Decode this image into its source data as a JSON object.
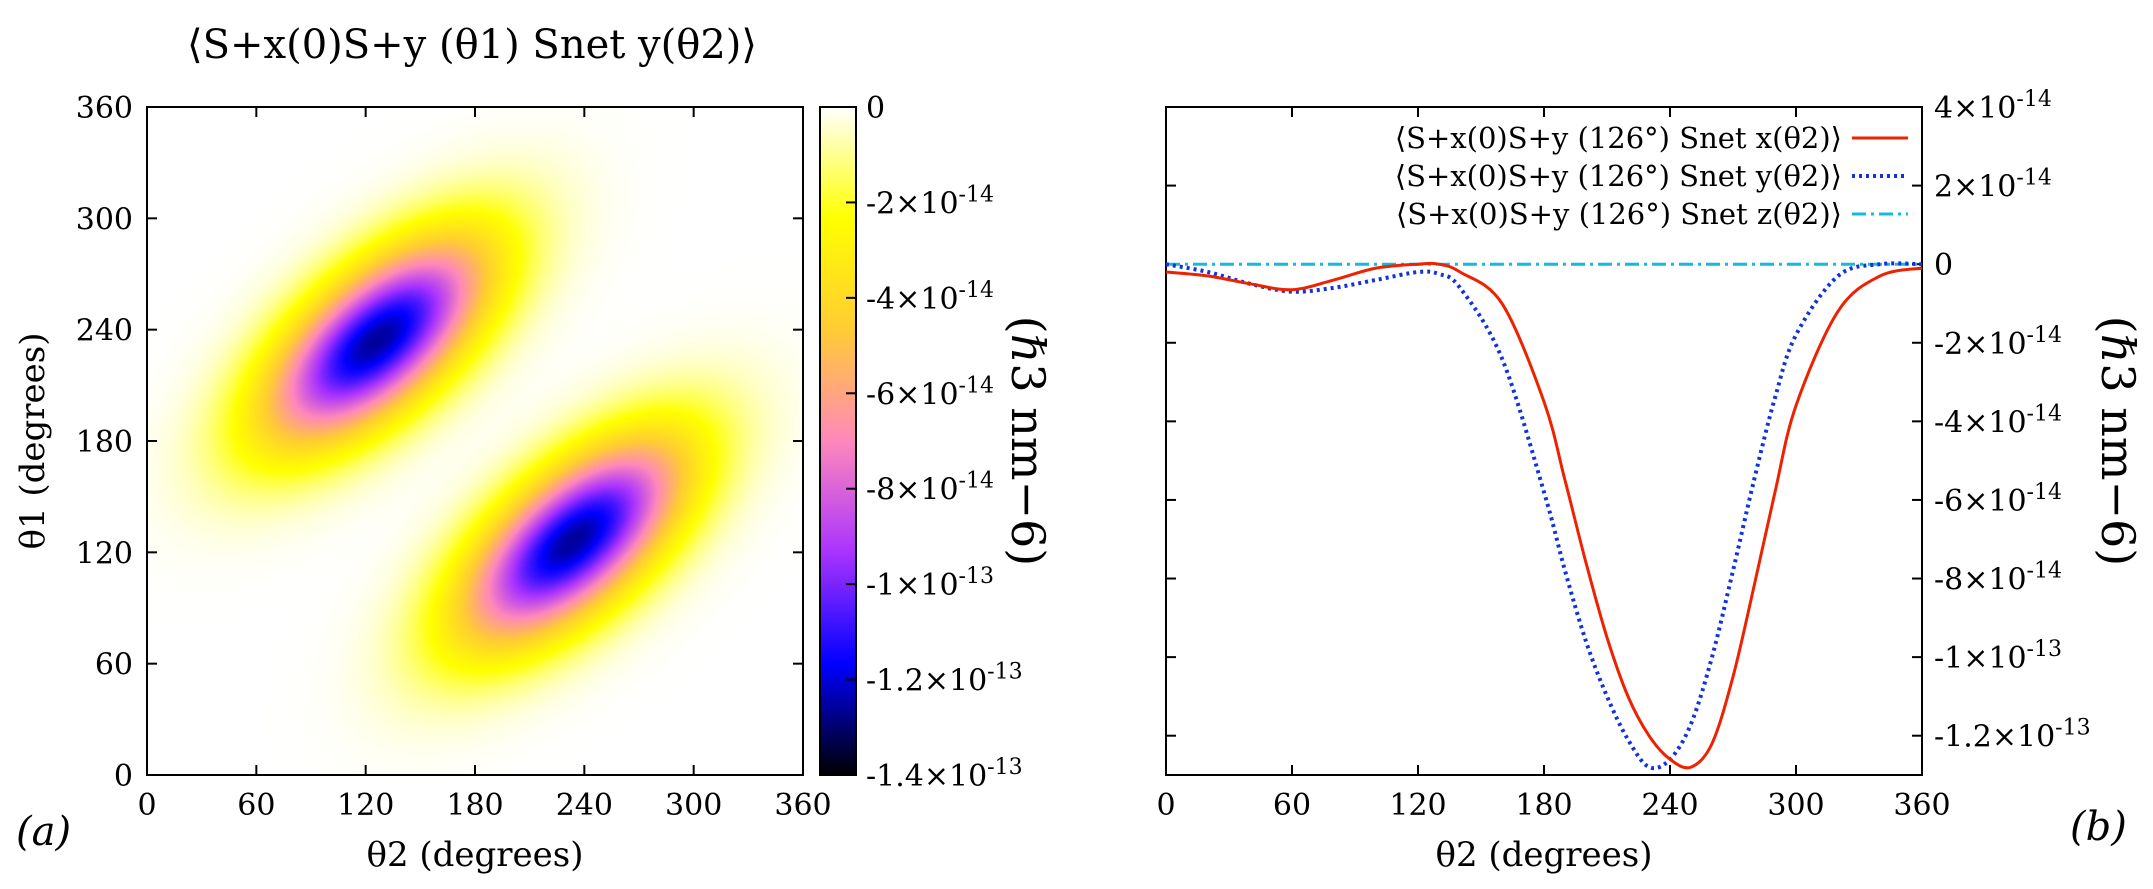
{
  "chart_data": [
    {
      "type": "heatmap",
      "panel_label": "(a)",
      "title": "⟨S+x(0)S+y (θ1) Snet y(θ2)⟩",
      "xlabel": "θ2 (degrees)",
      "ylabel": "θ1 (degrees)",
      "xlim": [
        0,
        360
      ],
      "ylim": [
        0,
        360
      ],
      "xticks": [
        "0",
        "60",
        "120",
        "180",
        "240",
        "300",
        "360"
      ],
      "yticks": [
        "0",
        "60",
        "120",
        "180",
        "240",
        "300",
        "360"
      ],
      "colorbar": {
        "range": [
          -1.4e-13,
          0
        ],
        "ticks": [
          "0",
          "-2×10-14",
          "-4×10-14",
          "-6×10-14",
          "-8×10-14",
          "-1×10-13",
          "-1.2×10-13",
          "-1.4×10-13"
        ],
        "label": "(ℏ3 nm−6)",
        "colors": [
          "#000000",
          "#0000ff",
          "#aa33ff",
          "#ff88bb",
          "#ffcc33",
          "#ffff00",
          "#ffffff"
        ]
      },
      "features": [
        {
          "name": "lobe-1",
          "theta2_center": 126,
          "theta1_center": 234,
          "min_value": -1.26e-13
        },
        {
          "name": "lobe-2",
          "theta2_center": 234,
          "theta1_center": 126,
          "min_value": -1.26e-13
        }
      ]
    },
    {
      "type": "line",
      "panel_label": "(b)",
      "xlabel": "θ2 (degrees)",
      "ylabel": "(ℏ3 nm−6)",
      "xlim": [
        0,
        360
      ],
      "ylim": [
        -1.3e-13,
        4e-14
      ],
      "xticks": [
        "0",
        "60",
        "120",
        "180",
        "240",
        "300",
        "360"
      ],
      "yticks": [
        "4×10-14",
        "2×10-14",
        "0",
        "-2×10-14",
        "-4×10-14",
        "-6×10-14",
        "-8×10-14",
        "-1×10-13",
        "-1.2×10-13"
      ],
      "x": [
        0,
        20,
        40,
        60,
        80,
        100,
        120,
        130,
        140,
        160,
        180,
        190,
        200,
        210,
        220,
        230,
        240,
        250,
        260,
        270,
        280,
        290,
        300,
        320,
        340,
        360
      ],
      "series": [
        {
          "name": "⟨S+x(0)S+y (126°) Snet x(θ2)⟩",
          "color": "#ee2200",
          "style": "solid",
          "values": [
            -2e-15,
            -3e-15,
            -5e-15,
            -6.5e-15,
            -4e-15,
            -1e-15,
            0,
            0,
            -2e-15,
            -1e-14,
            -3.5e-14,
            -5.5e-14,
            -7.6e-14,
            -9.5e-14,
            -1.1e-13,
            -1.2e-13,
            -1.26e-13,
            -1.28e-13,
            -1.22e-13,
            -1.05e-13,
            -8.2e-14,
            -5.8e-14,
            -3.6e-14,
            -1.2e-14,
            -3e-15,
            -1e-15
          ]
        },
        {
          "name": "⟨S+x(0)S+y (126°) Snet y(θ2)⟩",
          "color": "#1133dd",
          "style": "dotted",
          "values": [
            0,
            -2e-15,
            -5e-15,
            -7e-15,
            -6e-15,
            -4e-15,
            -2e-15,
            -2.5e-15,
            -6e-15,
            -2.4e-14,
            -5.8e-14,
            -7.8e-14,
            -9.6e-14,
            -1.1e-13,
            -1.21e-13,
            -1.28e-13,
            -1.26e-13,
            -1.17e-13,
            -1e-13,
            -7.8e-14,
            -5.5e-14,
            -3.4e-14,
            -1.8e-14,
            -3e-15,
            0,
            0
          ]
        },
        {
          "name": "⟨S+x(0)S+y (126°) Snet z(θ2)⟩",
          "color": "#11bbdd",
          "style": "dash-dot",
          "values": [
            0,
            0,
            0,
            0,
            0,
            0,
            0,
            0,
            0,
            0,
            0,
            0,
            0,
            0,
            0,
            0,
            0,
            0,
            0,
            0,
            0,
            0,
            0,
            0,
            0,
            0
          ]
        }
      ]
    }
  ]
}
